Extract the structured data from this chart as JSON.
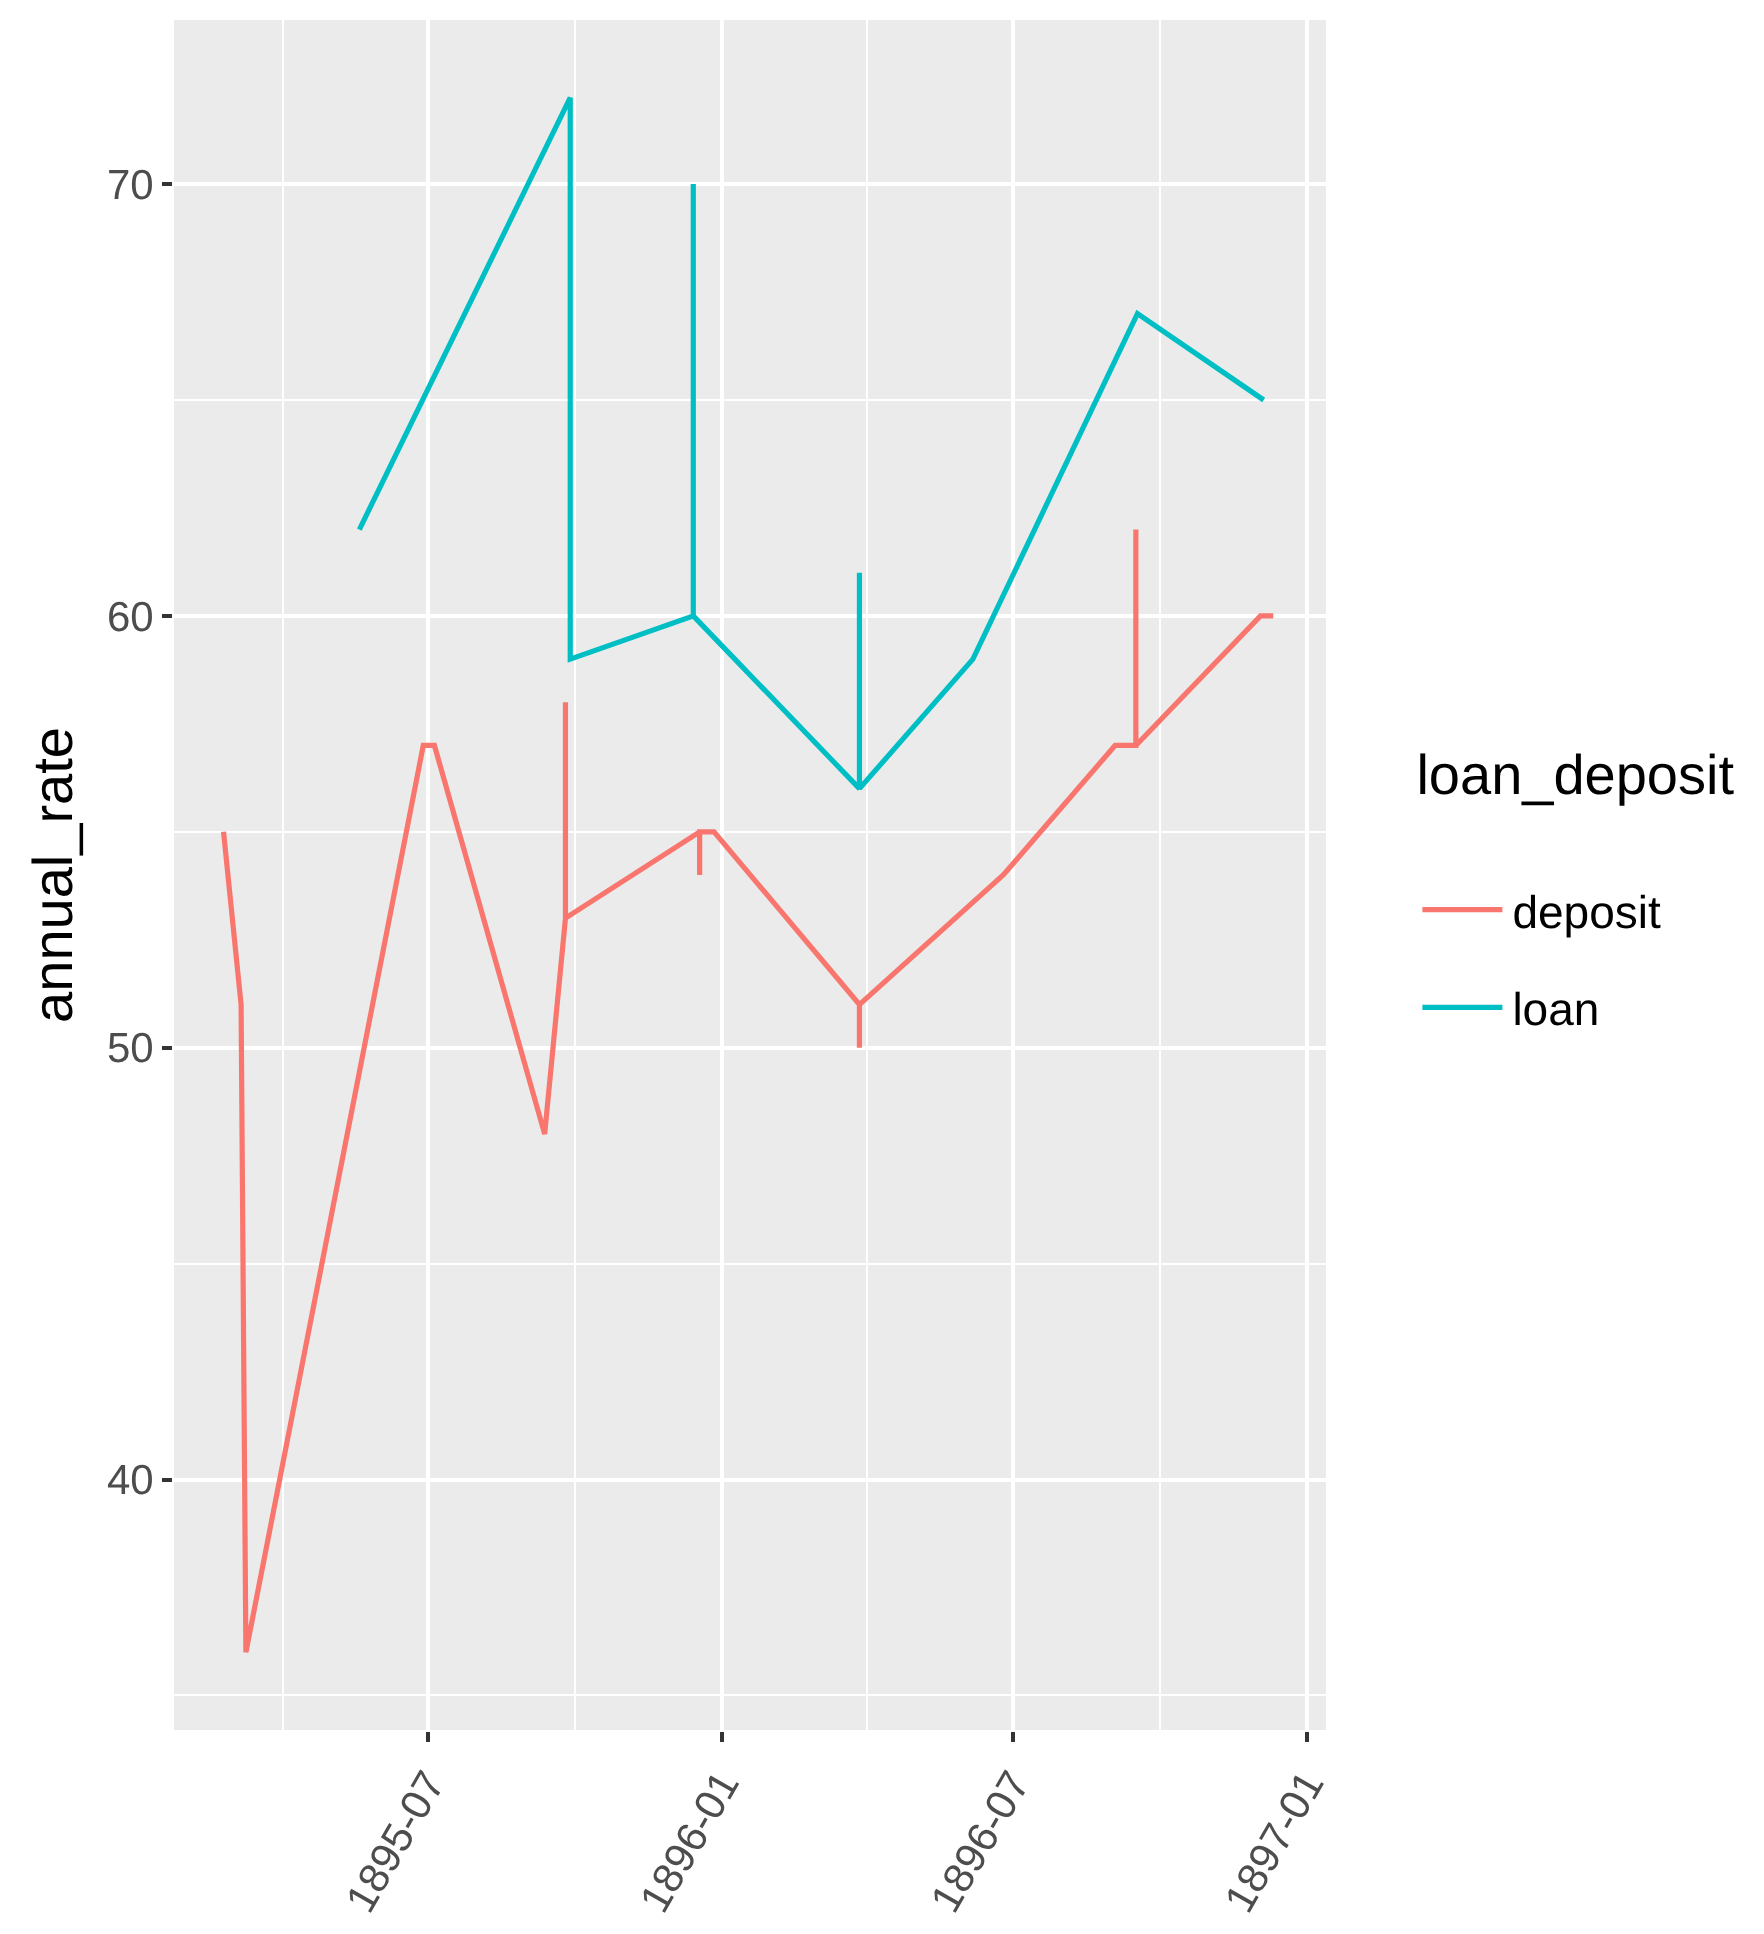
{
  "chart_data": {
    "type": "line",
    "ylabel": "annual_rate",
    "legend_title": "loan_deposit",
    "series": [
      {
        "name": "deposit",
        "color": "#f8766d",
        "x": [
          "1895-02-23",
          "1895-03-06",
          "1895-03-09",
          "1895-06-28",
          "1895-07-05",
          "1895-09-12",
          "1895-09-25",
          "1895-09-25",
          "1895-09-25",
          "1895-12-18",
          "1895-12-18",
          "1895-12-18",
          "1895-12-27",
          "1896-03-27",
          "1896-03-27",
          "1896-03-27",
          "1896-06-25",
          "1896-09-03",
          "1896-09-16",
          "1896-09-16",
          "1896-09-16",
          "1896-12-03",
          "1896-12-11"
        ],
        "values": [
          55,
          51,
          36,
          57,
          57,
          48,
          53,
          58,
          53,
          55,
          54,
          55,
          55,
          51,
          50,
          51,
          54,
          57,
          57,
          62,
          57,
          60,
          60
        ]
      },
      {
        "name": "loan",
        "color": "#00bfc4",
        "x": [
          "1895-05-19",
          "1895-09-28",
          "1895-09-28",
          "1895-12-14",
          "1895-12-14",
          "1895-12-14",
          "1896-03-27",
          "1896-03-27",
          "1896-03-27",
          "1896-06-06",
          "1896-09-17",
          "1896-12-05"
        ],
        "values": [
          62,
          72,
          59,
          60,
          70,
          60,
          56,
          61,
          56,
          59,
          67,
          65
        ]
      }
    ],
    "xlim": [
      "1895-01-23",
      "1897-01-13"
    ],
    "xticks": [
      {
        "value": "1895-04",
        "label": null
      },
      "1895-07",
      {
        "value": "1895-10",
        "label": null
      },
      "1896-01",
      {
        "value": "1896-04",
        "label": null
      },
      "1896-07",
      {
        "value": "1896-10",
        "label": null
      },
      "1897-01"
    ],
    "ylim": [
      34.2,
      73.8
    ],
    "yticks": [
      {
        "value": 35,
        "label": null
      },
      40,
      {
        "value": 45,
        "label": null
      },
      50,
      {
        "value": 55,
        "label": null
      },
      60,
      {
        "value": 65,
        "label": null
      },
      70
    ],
    "grid": true,
    "legend": "right"
  }
}
